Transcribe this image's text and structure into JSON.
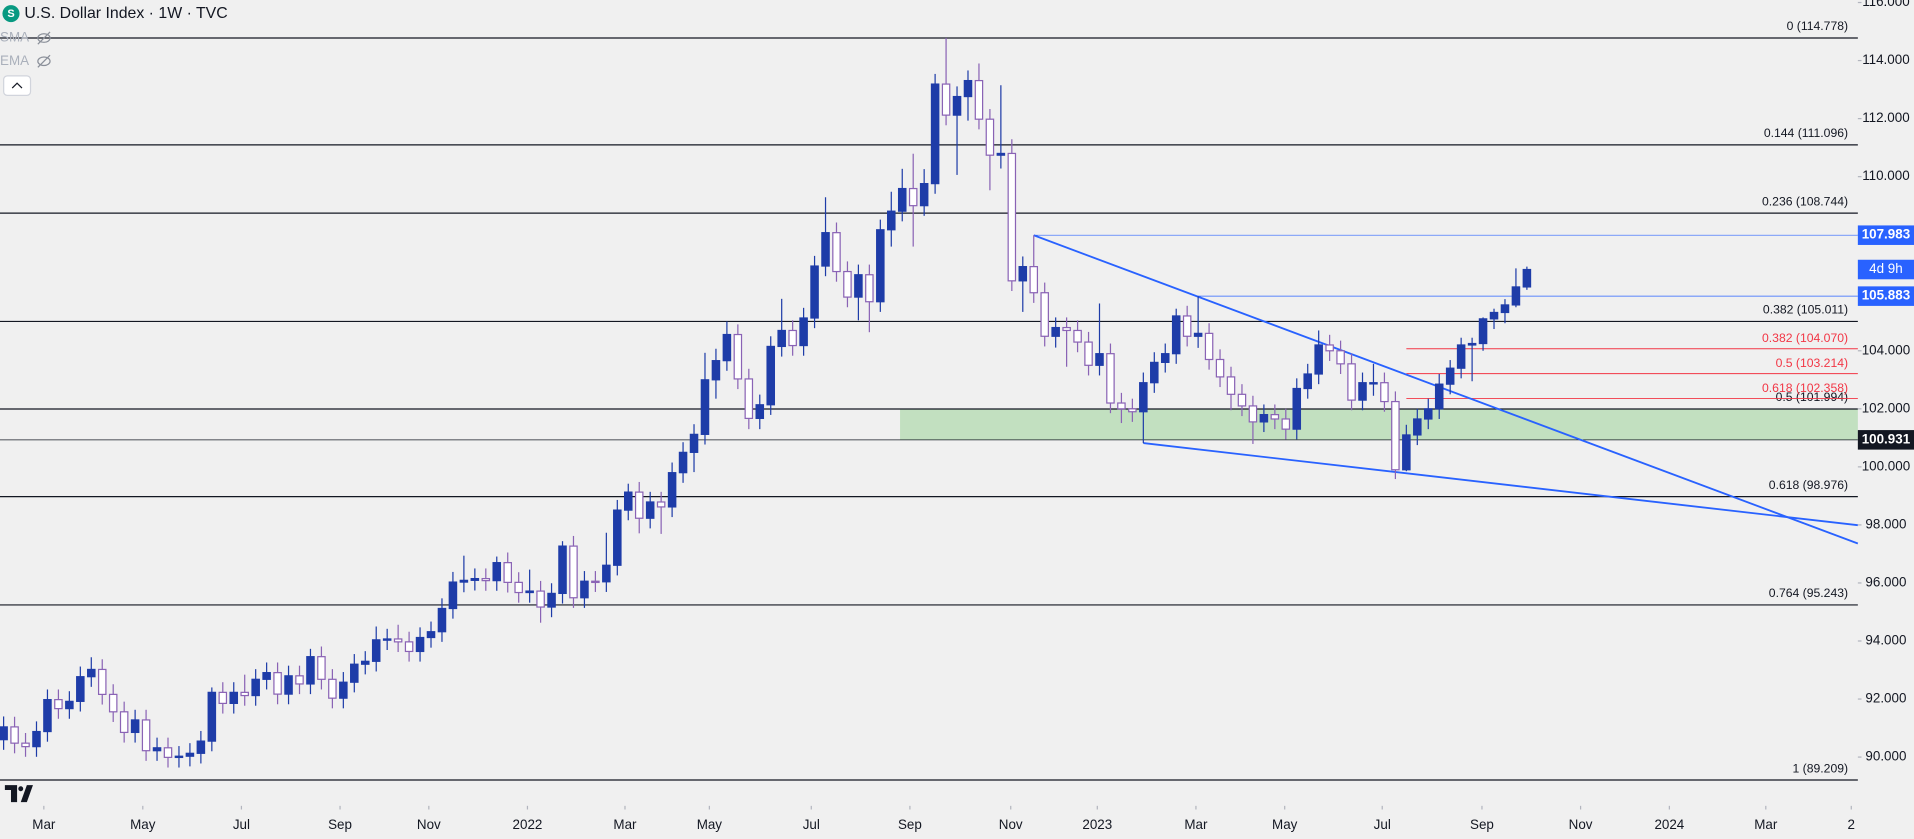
{
  "chart_data": {
    "type": "candlestick",
    "title": "U.S. Dollar Index · 1W · TVC",
    "indicators": [
      "SMA",
      "EMA"
    ],
    "up_color": "#1e3ca8",
    "down_color": "#8a63b5",
    "open": [
      90.6,
      91.04,
      90.48,
      90.36,
      90.88,
      91.98,
      91.67,
      91.92,
      92.77,
      93.02,
      92.16,
      91.56,
      90.85,
      91.28,
      90.22,
      90.32,
      89.99,
      90.03,
      90.13,
      90.55,
      92.23,
      91.85,
      92.23,
      92.12,
      92.68,
      92.91,
      92.17,
      92.8,
      92.52,
      93.46,
      92.68,
      92.03,
      92.58,
      93.2,
      93.3,
      94.04,
      94.07,
      93.97,
      93.64,
      94.12,
      94.32,
      95.12,
      96.03,
      96.09,
      96.15,
      96.08,
      96.7,
      96.02,
      95.67,
      95.72,
      95.17,
      95.64,
      97.27,
      95.49,
      96.06,
      96.04,
      96.61,
      98.51,
      99.13,
      98.23,
      98.79,
      98.62,
      99.8,
      100.5,
      101.12,
      103.0,
      103.66,
      104.56,
      103.03,
      101.67,
      102.14,
      104.15,
      104.7,
      104.18,
      105.13,
      106.92,
      108.07,
      106.73,
      105.85,
      106.62,
      105.69,
      108.17,
      108.81,
      109.59,
      109.0,
      109.76,
      113.19,
      112.12,
      112.76,
      113.31,
      111.98,
      110.74,
      110.8,
      106.41,
      106.9,
      106.0,
      104.5,
      104.8,
      104.7,
      104.3,
      103.5,
      103.9,
      102.2,
      102.0,
      101.9,
      102.9,
      103.6,
      103.9,
      105.2,
      104.5,
      104.6,
      103.7,
      103.1,
      102.5,
      102.1,
      101.55,
      101.8,
      101.65,
      101.3,
      102.7,
      103.2,
      104.2,
      104.0,
      103.55,
      102.3,
      102.9,
      102.9,
      102.25,
      99.9,
      101.1,
      101.65,
      102.0,
      102.85,
      103.4,
      104.2,
      104.25,
      105.1,
      105.32,
      105.58,
      106.2
    ],
    "high": [
      91.4,
      91.39,
      90.83,
      91.23,
      92.33,
      92.33,
      92.27,
      93.12,
      93.44,
      93.37,
      92.51,
      91.91,
      91.63,
      91.63,
      90.67,
      90.67,
      90.38,
      90.48,
      90.9,
      92.4,
      92.58,
      92.58,
      92.84,
      93.03,
      93.26,
      93.26,
      93.15,
      93.15,
      93.73,
      93.81,
      93.03,
      92.93,
      93.55,
      93.65,
      94.5,
      94.42,
      94.56,
      94.32,
      94.47,
      94.67,
      95.47,
      96.38,
      96.94,
      96.5,
      96.5,
      96.91,
      97.05,
      96.37,
      96.46,
      96.07,
      95.99,
      97.44,
      97.62,
      96.41,
      96.41,
      97.73,
      98.86,
      99.42,
      99.48,
      99.14,
      99.14,
      100.15,
      100.85,
      101.47,
      103.93,
      104.07,
      105.01,
      104.91,
      103.38,
      102.49,
      104.5,
      105.79,
      105.05,
      105.48,
      107.27,
      109.29,
      108.42,
      107.08,
      106.97,
      106.97,
      108.52,
      109.48,
      110.27,
      110.79,
      110.26,
      113.54,
      114.78,
      113.11,
      113.66,
      113.9,
      112.33,
      113.15,
      111.29,
      107.25,
      107.98,
      106.35,
      105.15,
      105.15,
      105.05,
      104.65,
      105.63,
      104.25,
      102.55,
      102.35,
      103.25,
      103.95,
      104.25,
      105.45,
      105.55,
      105.88,
      104.95,
      104.05,
      103.45,
      102.85,
      102.45,
      102.15,
      102.15,
      102.0,
      103.05,
      103.55,
      104.7,
      104.55,
      104.35,
      103.9,
      103.25,
      103.55,
      103.25,
      102.6,
      101.45,
      102.0,
      102.35,
      103.2,
      103.68,
      104.45,
      104.45,
      105.15,
      105.45,
      105.78,
      106.84,
      106.9
    ],
    "low": [
      90.25,
      90.13,
      90.01,
      90.01,
      90.53,
      91.32,
      91.32,
      91.57,
      92.42,
      91.81,
      91.21,
      90.5,
      90.5,
      89.87,
      89.87,
      89.64,
      89.64,
      89.68,
      89.78,
      90.2,
      91.5,
      91.5,
      91.77,
      91.77,
      92.33,
      91.82,
      91.82,
      92.17,
      92.17,
      92.33,
      91.68,
      91.68,
      92.23,
      92.85,
      92.95,
      93.69,
      93.62,
      93.29,
      93.29,
      93.77,
      93.97,
      94.77,
      95.68,
      95.74,
      95.73,
      95.73,
      95.67,
      95.32,
      95.32,
      94.63,
      94.82,
      95.29,
      95.14,
      95.14,
      95.69,
      95.69,
      96.26,
      98.16,
      97.71,
      97.88,
      97.69,
      98.27,
      99.45,
      99.82,
      100.77,
      102.35,
      103.31,
      102.68,
      101.3,
      101.3,
      101.79,
      103.8,
      103.83,
      103.83,
      104.78,
      106.57,
      106.38,
      105.5,
      105.05,
      104.64,
      105.34,
      107.59,
      108.46,
      107.59,
      108.65,
      109.41,
      111.77,
      110.06,
      111.93,
      111.63,
      109.53,
      110.28,
      106.06,
      105.34,
      105.65,
      104.15,
      104.11,
      103.45,
      103.95,
      103.15,
      103.15,
      101.85,
      101.51,
      101.55,
      100.82,
      102.55,
      103.25,
      103.55,
      104.15,
      104.1,
      103.35,
      102.75,
      101.95,
      101.75,
      100.79,
      101.2,
      101.3,
      100.95,
      100.95,
      102.35,
      102.85,
      103.65,
      103.2,
      101.95,
      101.95,
      102.45,
      101.9,
      99.58,
      99.85,
      100.75,
      101.3,
      101.65,
      102.5,
      103.05,
      102.95,
      104.0,
      104.75,
      104.95,
      105.5,
      106.1
    ],
    "close": [
      91.04,
      90.48,
      90.36,
      90.88,
      91.98,
      91.67,
      91.92,
      92.77,
      93.02,
      92.16,
      91.56,
      90.85,
      91.28,
      90.22,
      90.32,
      89.99,
      90.03,
      90.13,
      90.55,
      92.23,
      91.85,
      92.23,
      92.12,
      92.68,
      92.91,
      92.17,
      92.8,
      92.52,
      93.46,
      92.68,
      92.03,
      92.58,
      93.2,
      93.3,
      94.04,
      94.07,
      93.97,
      93.64,
      94.12,
      94.32,
      95.12,
      96.03,
      96.09,
      96.15,
      96.08,
      96.7,
      96.02,
      95.67,
      95.72,
      95.17,
      95.64,
      97.27,
      95.49,
      96.06,
      96.04,
      96.61,
      98.51,
      99.13,
      98.23,
      98.79,
      98.62,
      99.8,
      100.5,
      101.12,
      103.0,
      103.66,
      104.56,
      103.03,
      101.67,
      102.14,
      104.15,
      104.7,
      104.18,
      105.13,
      106.92,
      108.07,
      106.73,
      105.85,
      106.62,
      105.69,
      108.17,
      108.81,
      109.59,
      109.0,
      109.76,
      113.19,
      112.12,
      112.76,
      113.31,
      111.98,
      110.74,
      110.8,
      106.41,
      106.9,
      106.0,
      104.5,
      104.8,
      104.7,
      104.3,
      103.5,
      103.9,
      102.2,
      102.0,
      101.9,
      102.9,
      103.6,
      103.9,
      105.2,
      104.5,
      104.6,
      103.7,
      103.1,
      102.5,
      102.1,
      101.55,
      101.8,
      101.65,
      101.3,
      102.7,
      103.2,
      104.2,
      104.0,
      103.55,
      102.3,
      102.9,
      102.9,
      102.25,
      99.9,
      101.1,
      101.65,
      102.0,
      102.85,
      103.4,
      104.2,
      104.25,
      105.1,
      105.32,
      105.58,
      106.2,
      106.8
    ],
    "xlim": [
      -0.33,
      169.2
    ],
    "xticks": [
      {
        "value": 3.67,
        "label": "Mar"
      },
      {
        "value": 12.7,
        "label": "May"
      },
      {
        "value": 21.7,
        "label": "Jul"
      },
      {
        "value": 30.7,
        "label": "Sep"
      },
      {
        "value": 38.8,
        "label": "Nov"
      },
      {
        "value": 47.8,
        "label": "2022"
      },
      {
        "value": 56.7,
        "label": "Mar"
      },
      {
        "value": 64.4,
        "label": "May"
      },
      {
        "value": 73.7,
        "label": "Jul"
      },
      {
        "value": 82.7,
        "label": "Sep"
      },
      {
        "value": 91.9,
        "label": "Nov"
      },
      {
        "value": 99.8,
        "label": "2023"
      },
      {
        "value": 108.8,
        "label": "Mar"
      },
      {
        "value": 116.9,
        "label": "May"
      },
      {
        "value": 125.8,
        "label": "Jul"
      },
      {
        "value": 134.9,
        "label": "Sep"
      },
      {
        "value": 143.9,
        "label": "Nov"
      },
      {
        "value": 152.0,
        "label": "2024"
      },
      {
        "value": 160.8,
        "label": "Mar"
      },
      {
        "value": 168.6,
        "label": "2"
      }
    ],
    "ylim": [
      88.32,
      116.08
    ],
    "yticks": [
      {
        "value": 116,
        "label": "116.000"
      },
      {
        "value": 114,
        "label": "114.000"
      },
      {
        "value": 112,
        "label": "112.000"
      },
      {
        "value": 110,
        "label": "110.000"
      },
      {
        "value": 108,
        "label": "108.000"
      },
      {
        "value": 106,
        "label": "106.000"
      },
      {
        "value": 104,
        "label": "104.000"
      },
      {
        "value": 102,
        "label": "102.000"
      },
      {
        "value": 100,
        "label": "100.000"
      },
      {
        "value": 98,
        "label": "98.000"
      },
      {
        "value": 96,
        "label": "96.000"
      },
      {
        "value": 94,
        "label": "94.000"
      },
      {
        "value": 92,
        "label": "92.000"
      },
      {
        "value": 90,
        "label": "90.000"
      }
    ],
    "fib_levels": [
      {
        "value": 114.778,
        "label": "0 (114.778)"
      },
      {
        "value": 111.096,
        "label": "0.144 (111.096)"
      },
      {
        "value": 108.744,
        "label": "0.236 (108.744)"
      },
      {
        "value": 105.011,
        "label": "0.382 (105.011)"
      },
      {
        "value": 101.994,
        "label": "0.5 (101.994)"
      },
      {
        "value": 98.976,
        "label": "0.618 (98.976)"
      },
      {
        "value": 95.243,
        "label": "0.764 (95.243)"
      },
      {
        "value": 89.209,
        "label": "1 (89.209)"
      }
    ],
    "fib_color": "#131722",
    "fib2_start": 128,
    "fib2_levels": [
      {
        "value": 104.07,
        "label": "0.382 (104.070)"
      },
      {
        "value": 103.214,
        "label": "0.5 (103.214)"
      },
      {
        "value": 102.358,
        "label": "0.618 (102.358)"
      }
    ],
    "fib2_color": "#f23645",
    "price_lines": [
      {
        "value": 107.983,
        "label": "107.983",
        "start": 94,
        "color": "#2962ff"
      },
      {
        "value": 105.883,
        "label": "105.883",
        "start": 109,
        "color": "#2962ff"
      },
      {
        "value": 100.931,
        "label": "100.931",
        "start": -0.33,
        "color": "#131722"
      }
    ],
    "zone": {
      "low": 100.931,
      "high": 101.994,
      "start": 81.8,
      "color": "#b7dcb4"
    },
    "trendlines": [
      {
        "points": [
          [
            94,
            107.98
          ],
          [
            169.2,
            97.36
          ]
        ],
        "color": "#2962ff"
      },
      {
        "points": [
          [
            104,
            100.82
          ],
          [
            169.2,
            97.99
          ]
        ],
        "color": "#2962ff"
      }
    ],
    "countdown": "4d 9h"
  }
}
